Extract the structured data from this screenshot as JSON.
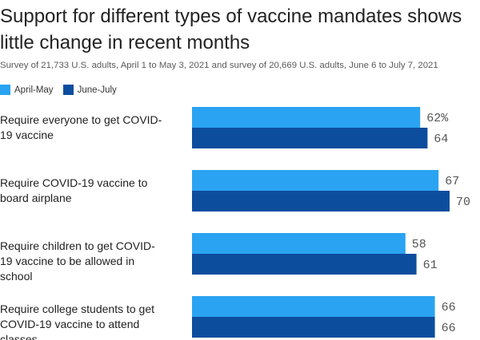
{
  "title": "Support for different types of vaccine mandates shows little change in recent months",
  "subtitle": "Survey of 21,733 U.S. adults, April 1 to May 3, 2021 and survey of 20,669 U.S. adults, June 6 to July 7, 2021",
  "colors": {
    "april_may": "#29a3f2",
    "june_july": "#0d4d9e"
  },
  "chart_data": {
    "type": "bar",
    "orientation": "horizontal",
    "categories": [
      [
        "Require everyone to get COVID-",
        "19 vaccine"
      ],
      [
        "Require COVID-19 vaccine to",
        "board airplane"
      ],
      [
        "Require children to get COVID-",
        "19 vaccine to be allowed in",
        "school"
      ],
      [
        "Require college students to get",
        "COVID-19 vaccine to attend",
        "classes"
      ]
    ],
    "series": [
      {
        "name": "April-May",
        "values": [
          62,
          67,
          58,
          66
        ],
        "labels": [
          "62%",
          "67",
          "58",
          "66"
        ]
      },
      {
        "name": "June-July",
        "values": [
          64,
          70,
          61,
          66
        ],
        "labels": [
          "64",
          "70",
          "61",
          "66"
        ]
      }
    ],
    "xlim": [
      0,
      70
    ],
    "legend": "top-left",
    "grid": false
  }
}
